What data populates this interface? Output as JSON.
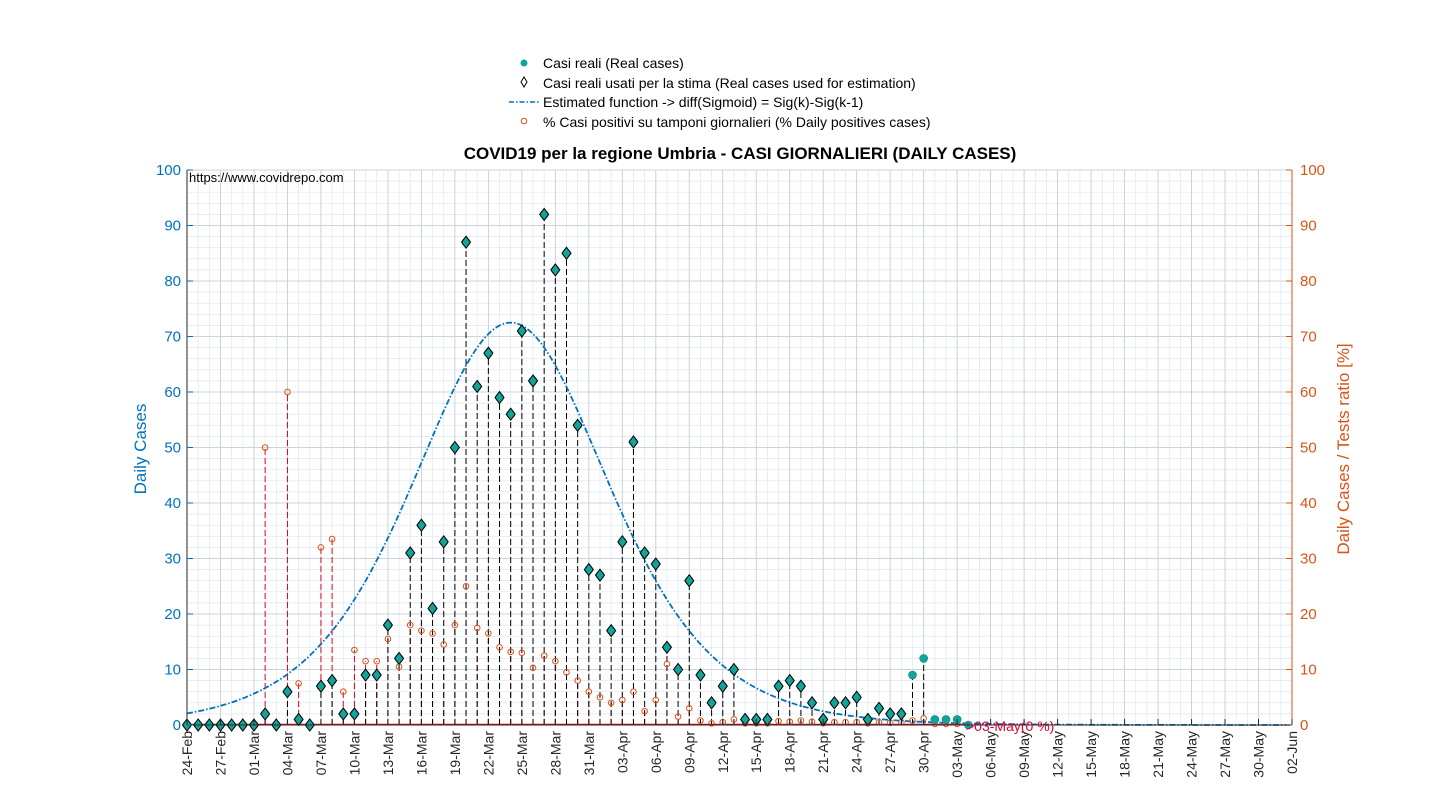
{
  "chart_data": {
    "type": "scatter",
    "title": "COVID19 per la regione Umbria - CASI GIORNALIERI (DAILY CASES)",
    "ylabel": "Daily Cases",
    "ylabel_right": "Daily Cases / Tests ratio [%]",
    "ylim": [
      0,
      100
    ],
    "ylim_right": [
      0,
      100
    ],
    "yticks": [
      "0",
      "10",
      "20",
      "30",
      "40",
      "50",
      "60",
      "70",
      "80",
      "90",
      "100"
    ],
    "yticks_right": [
      "0",
      "10",
      "20",
      "30",
      "40",
      "50",
      "60",
      "70",
      "80",
      "90",
      "100"
    ],
    "x_start": "24-Feb",
    "x_end": "02-Jun",
    "x_ticks": [
      "24-Feb",
      "27-Feb",
      "01-Mar",
      "04-Mar",
      "07-Mar",
      "10-Mar",
      "13-Mar",
      "16-Mar",
      "19-Mar",
      "22-Mar",
      "25-Mar",
      "28-Mar",
      "31-Mar",
      "03-Apr",
      "06-Apr",
      "09-Apr",
      "12-Apr",
      "15-Apr",
      "18-Apr",
      "21-Apr",
      "24-Apr",
      "27-Apr",
      "30-Apr",
      "03-May",
      "06-May",
      "09-May",
      "12-May",
      "15-May",
      "18-May",
      "21-May",
      "24-May",
      "27-May",
      "30-May",
      "02-Jun"
    ],
    "annotation": "https://www.covidrepo.com",
    "end_note": ">03-May(0 %)",
    "grid": true,
    "legend_position": "top",
    "colors": {
      "real": "#12A49B",
      "estimated": "#0072BD",
      "ratio": "#D95319",
      "stems_real": "#000000",
      "note": "#E0002D"
    },
    "series": [
      {
        "name": "Casi reali (Real cases)",
        "marker": "filled-circle",
        "start_date": "24-Feb",
        "values": [
          0,
          0,
          0,
          0,
          0,
          0,
          0,
          2,
          0,
          6,
          1,
          0,
          7,
          8,
          2,
          2,
          9,
          9,
          18,
          12,
          31,
          36,
          21,
          33,
          50,
          87,
          61,
          67,
          59,
          56,
          71,
          62,
          92,
          82,
          85,
          54,
          28,
          27,
          17,
          33,
          51,
          31,
          29,
          14,
          10,
          26,
          9,
          4,
          7,
          10,
          1,
          1,
          1,
          7,
          8,
          7,
          4,
          1,
          4,
          4,
          5,
          1,
          3,
          2,
          2,
          9,
          12,
          1,
          1,
          1,
          0
        ]
      },
      {
        "name": "Casi reali usati per la stima (Real cases used for estimation)",
        "marker": "diamond",
        "start_date": "24-Feb",
        "values": [
          0,
          0,
          0,
          0,
          0,
          0,
          0,
          2,
          0,
          6,
          1,
          0,
          7,
          8,
          2,
          2,
          9,
          9,
          18,
          12,
          31,
          36,
          21,
          33,
          50,
          87,
          61,
          67,
          59,
          56,
          71,
          62,
          92,
          82,
          85,
          54,
          28,
          27,
          17,
          33,
          51,
          31,
          29,
          14,
          10,
          26,
          9,
          4,
          7,
          10,
          1,
          1,
          1,
          7,
          8,
          7,
          4,
          1,
          4,
          4,
          5,
          1,
          3,
          2,
          2
        ]
      },
      {
        "name": "Estimated function -> diff(Sigmoid) = Sig(k)-Sig(k-1)",
        "style": "dash-dot",
        "start_date": "24-Feb",
        "peak_date": "24-Mar",
        "peak_value": 72.5
      },
      {
        "name": "% Casi positivi su tamponi giornalieri (% Daily positives cases)",
        "marker": "open-circle",
        "axis": "right",
        "start_date": "24-Feb",
        "values": [
          0,
          0,
          0,
          0,
          0,
          0,
          0,
          50,
          0,
          60,
          7.5,
          0,
          32,
          33.5,
          6,
          13.5,
          11.5,
          11.5,
          15.5,
          10.5,
          18,
          17,
          16.5,
          14.5,
          18,
          25,
          17.5,
          16.5,
          14,
          13.2,
          13,
          10.3,
          12.5,
          11.5,
          9.5,
          8,
          6,
          5,
          4,
          4.5,
          6,
          2.5,
          4.5,
          11,
          1.5,
          3,
          0.8,
          0.3,
          0.5,
          1,
          0.3,
          0.3,
          0.3,
          0.7,
          0.6,
          0.8,
          0.6,
          0.3,
          0.5,
          0.5,
          0.5,
          0.3,
          0.5,
          0.4,
          0.5,
          0.8,
          1.2,
          0.2,
          0.2,
          0.2,
          0
        ]
      }
    ]
  }
}
